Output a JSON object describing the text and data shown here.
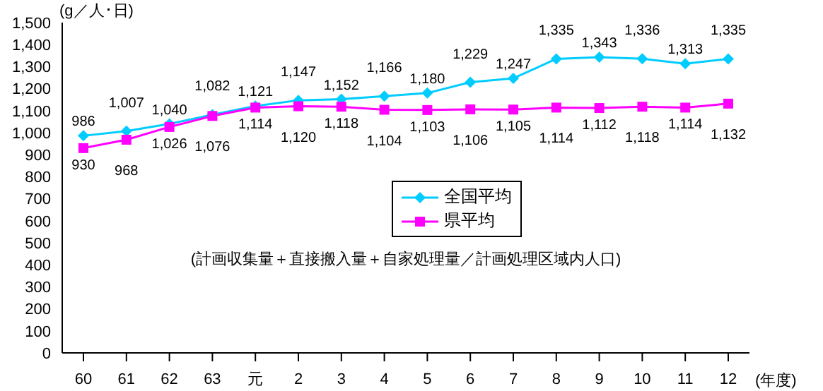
{
  "chart_data": {
    "type": "line",
    "ylabel": "(g／人･日)",
    "xlabel": "(年度)",
    "categories": [
      "60",
      "61",
      "62",
      "63",
      "元",
      "2",
      "3",
      "4",
      "5",
      "6",
      "7",
      "8",
      "9",
      "10",
      "11",
      "12"
    ],
    "series": [
      {
        "name": "全国平均",
        "color": "#00ccff",
        "marker": "diamond",
        "values": [
          986,
          1007,
          1040,
          1082,
          1121,
          1147,
          1152,
          1166,
          1180,
          1229,
          1247,
          1335,
          1343,
          1336,
          1313,
          1335
        ],
        "value_labels": [
          "986",
          "1,007",
          "1,040",
          "1,082",
          "1,121",
          "1,147",
          "1,152",
          "1,166",
          "1,180",
          "1,229",
          "1,247",
          "1,335",
          "1,343",
          "1,336",
          "1,313",
          "1,335"
        ]
      },
      {
        "name": "県平均",
        "color": "#ff00ff",
        "marker": "square",
        "values": [
          930,
          968,
          1026,
          1076,
          1114,
          1120,
          1118,
          1104,
          1103,
          1106,
          1105,
          1114,
          1112,
          1118,
          1114,
          1132
        ],
        "value_labels": [
          "930",
          "968",
          "1,026",
          "1,076",
          "1,114",
          "1,120",
          "1,118",
          "1,104",
          "1,103",
          "1,106",
          "1,105",
          "1,114",
          "1,112",
          "1,118",
          "1,114",
          "1,132"
        ]
      }
    ],
    "ylim": [
      0,
      1500
    ],
    "yticks": [
      {
        "value": 0,
        "label": "0"
      },
      {
        "value": 100,
        "label": "100"
      },
      {
        "value": 200,
        "label": "200"
      },
      {
        "value": 300,
        "label": "300"
      },
      {
        "value": 400,
        "label": "400"
      },
      {
        "value": 500,
        "label": "500"
      },
      {
        "value": 600,
        "label": "600"
      },
      {
        "value": 700,
        "label": "700"
      },
      {
        "value": 800,
        "label": "800"
      },
      {
        "value": 900,
        "label": "900"
      },
      {
        "value": 1000,
        "label": "1,000"
      },
      {
        "value": 1100,
        "label": "1,100"
      },
      {
        "value": 1200,
        "label": "1,200"
      },
      {
        "value": 1300,
        "label": "1,300"
      },
      {
        "value": 1400,
        "label": "1,400"
      },
      {
        "value": 1500,
        "label": "1,500"
      }
    ],
    "grid": false,
    "legend": "center",
    "annotations": [
      "(計画収集量＋直接搬入量＋自家処理量／計画処理区域内人口)"
    ]
  }
}
